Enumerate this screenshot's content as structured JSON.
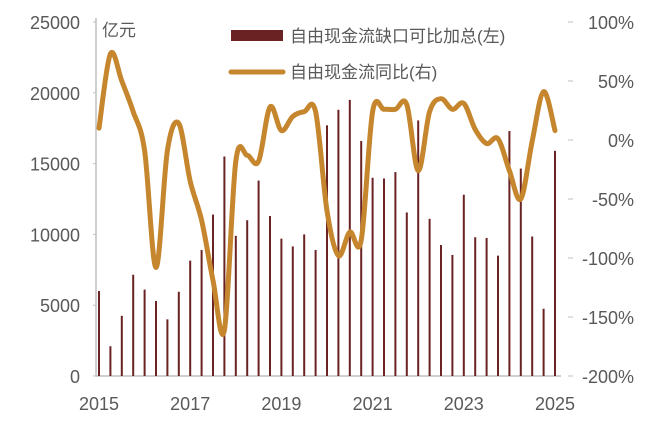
{
  "chart_data": {
    "type": "bar+line",
    "left_unit": "亿元",
    "x_tick_labels": [
      "2015",
      "2017",
      "2019",
      "2021",
      "2023",
      "2025"
    ],
    "categories": [
      "2015Q1",
      "2015Q2",
      "2015Q3",
      "2015Q4",
      "2016Q1",
      "2016Q2",
      "2016Q3",
      "2016Q4",
      "2017Q1",
      "2017Q2",
      "2017Q3",
      "2017Q4",
      "2018Q1",
      "2018Q2",
      "2018Q3",
      "2018Q4",
      "2019Q1",
      "2019Q2",
      "2019Q3",
      "2019Q4",
      "2020Q1",
      "2020Q2",
      "2020Q3",
      "2020Q4",
      "2021Q1",
      "2021Q2",
      "2021Q3",
      "2021Q4",
      "2022Q1",
      "2022Q2",
      "2022Q3",
      "2022Q4",
      "2023Q1",
      "2023Q2",
      "2023Q3",
      "2023Q4",
      "2024Q1",
      "2024Q2",
      "2024Q3",
      "2024Q4",
      "2025Q1"
    ],
    "series": [
      {
        "name": "自由现金流缺口可比加总(左)",
        "type": "bar",
        "axis": "left",
        "color": "#6B2222",
        "values": [
          6000,
          2100,
          4250,
          7150,
          6100,
          5300,
          4000,
          5950,
          8150,
          8900,
          11400,
          15500,
          9900,
          11000,
          13800,
          11300,
          9700,
          9150,
          10000,
          8900,
          17700,
          18800,
          19500,
          16600,
          14000,
          13950,
          14400,
          11550,
          18050,
          11100,
          9250,
          8550,
          12800,
          9800,
          9750,
          8500,
          17300,
          14650,
          9850,
          4750,
          15900
        ]
      },
      {
        "name": "自由现金流同比(右)",
        "type": "line",
        "axis": "right",
        "color": "#C5862E",
        "values": [
          10,
          73,
          50,
          24,
          -9,
          -108,
          -9,
          14,
          -35,
          -68,
          -119,
          -161,
          -18,
          -13,
          -18,
          28,
          8,
          20,
          24,
          24,
          -60,
          -98,
          -78,
          -85,
          24,
          26,
          26,
          30,
          -26,
          24,
          35,
          26,
          31,
          9,
          -3,
          1,
          -26,
          -50,
          -1,
          41,
          8
        ]
      }
    ],
    "left_axis": {
      "range": [
        0,
        25000
      ],
      "ticks": [
        "0",
        "5000",
        "10000",
        "15000",
        "20000",
        "25000"
      ]
    },
    "right_axis": {
      "range": [
        -200,
        100
      ],
      "unit": "%",
      "ticks": [
        "-200%",
        "-150%",
        "-100%",
        "-50%",
        "0%",
        "50%",
        "100%"
      ]
    },
    "legend_position": "top-right",
    "grid": false
  }
}
